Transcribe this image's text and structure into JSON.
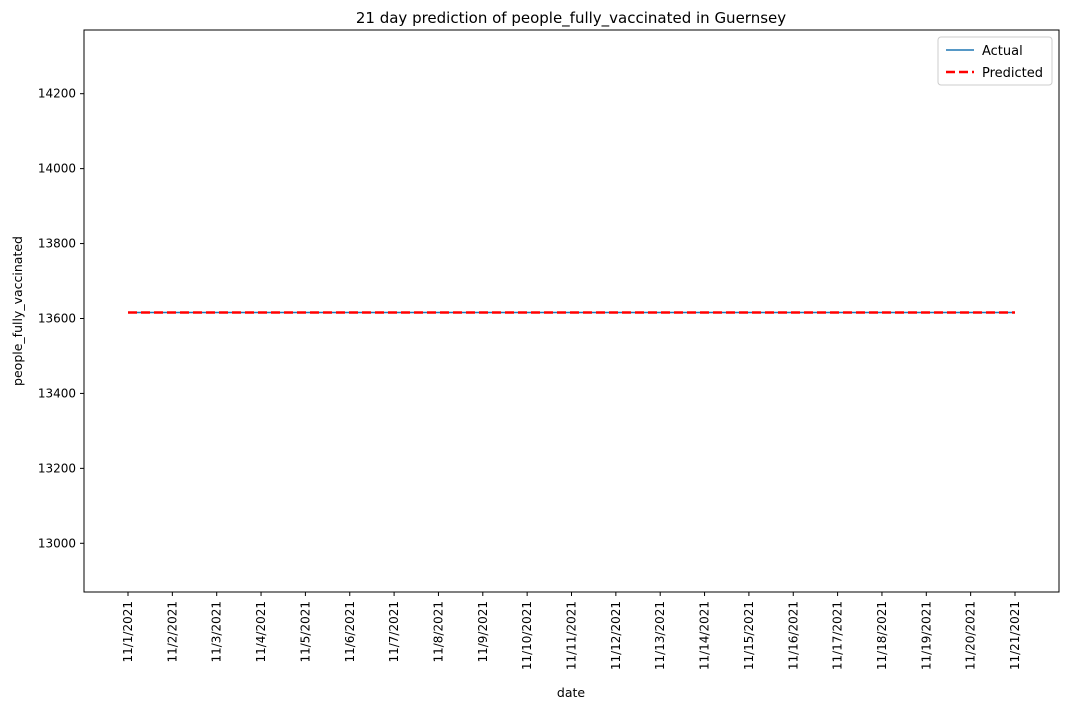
{
  "chart_data": {
    "type": "line",
    "title": "21 day prediction of people_fully_vaccinated in Guernsey",
    "xlabel": "date",
    "ylabel": "people_fully_vaccinated",
    "categories": [
      "11/1/2021",
      "11/2/2021",
      "11/3/2021",
      "11/4/2021",
      "11/5/2021",
      "11/6/2021",
      "11/7/2021",
      "11/8/2021",
      "11/9/2021",
      "11/10/2021",
      "11/11/2021",
      "11/12/2021",
      "11/13/2021",
      "11/14/2021",
      "11/15/2021",
      "11/16/2021",
      "11/17/2021",
      "11/18/2021",
      "11/19/2021",
      "11/20/2021",
      "11/21/2021"
    ],
    "y_ticks": [
      13000,
      13200,
      13400,
      13600,
      13800,
      14000,
      14200
    ],
    "ylim": [
      12870,
      14370
    ],
    "grid": false,
    "legend_position": "top-right",
    "series": [
      {
        "name": "Actual",
        "color": "#1f77b4",
        "style": "solid",
        "values": [
          13616,
          13616,
          13616,
          13616,
          13616,
          13616,
          13616,
          13616,
          13616,
          13616,
          13616,
          13616,
          13616,
          13616,
          13616,
          13616,
          13616,
          13616,
          13616,
          13616,
          13616
        ]
      },
      {
        "name": "Predicted",
        "color": "#ff0000",
        "style": "dashed",
        "values": [
          13616,
          13616,
          13616,
          13616,
          13616,
          13616,
          13616,
          13616,
          13616,
          13616,
          13616,
          13616,
          13616,
          13616,
          13616,
          13616,
          13616,
          13616,
          13616,
          13616,
          13616
        ]
      }
    ]
  }
}
